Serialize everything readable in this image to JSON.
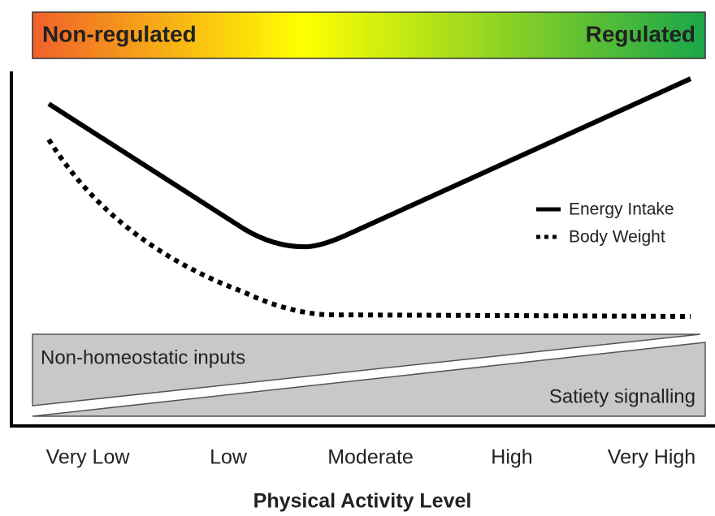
{
  "header": {
    "left": "Non-regulated",
    "right": "Regulated"
  },
  "legend": [
    "Energy Intake",
    "Body Weight"
  ],
  "panels": {
    "upper": "Non-homeostatic inputs",
    "lower": "Satiety signalling"
  },
  "x_axis": {
    "categories": [
      "Very Low",
      "Low",
      "Moderate",
      "High",
      "Very High"
    ],
    "title": "Physical Activity Level"
  }
}
